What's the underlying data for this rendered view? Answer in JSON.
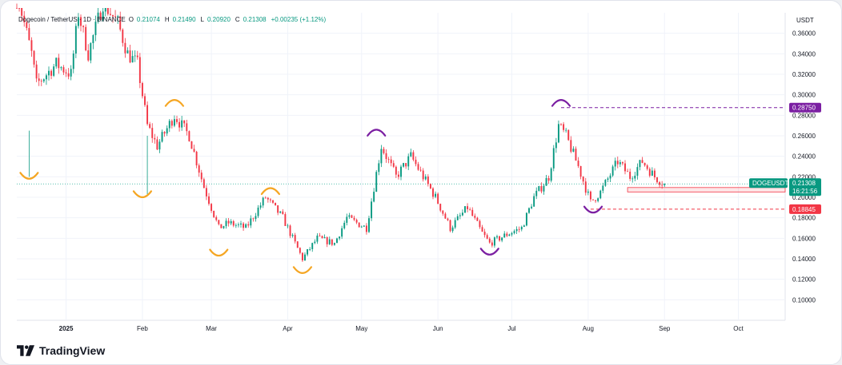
{
  "header": {
    "symbol": "Dogecoin / TetherUS · 1D · BINANCE",
    "open_label": "O",
    "open": "0.21074",
    "high_label": "H",
    "high": "0.21490",
    "low_label": "L",
    "low": "0.20920",
    "close_label": "C",
    "close": "0.21308",
    "change": "+0.00235 (+1.12%)",
    "currency": "USDT"
  },
  "brand": {
    "name": "TradingView"
  },
  "colors": {
    "up": "#089981",
    "down": "#f23645",
    "orange": "#f5a623",
    "purple": "#7b1fa2",
    "grid": "#f0f3fa",
    "price_line": "#22ab94"
  },
  "chart_data": {
    "type": "candlestick",
    "symbol": "DOGEUSDT",
    "ylim": [
      0.08,
      0.38
    ],
    "y_ticks": [
      "0.36000",
      "0.34000",
      "0.32000",
      "0.30000",
      "0.28000",
      "0.26000",
      "0.24000",
      "0.22000",
      "0.20000",
      "0.18000",
      "0.16000",
      "0.14000",
      "0.12000",
      "0.10000"
    ],
    "x_ticks": [
      {
        "label": "2025",
        "bold": true
      },
      {
        "label": "Feb",
        "bold": false
      },
      {
        "label": "Mar",
        "bold": false
      },
      {
        "label": "Apr",
        "bold": false
      },
      {
        "label": "May",
        "bold": false
      },
      {
        "label": "Jun",
        "bold": false
      },
      {
        "label": "Jul",
        "bold": false
      },
      {
        "label": "Aug",
        "bold": false
      },
      {
        "label": "Sep",
        "bold": false
      },
      {
        "label": "Oct",
        "bold": false
      }
    ],
    "x_range": [
      "2024-12-12",
      "2025-10-20"
    ],
    "anchors": [
      [
        "2024-12-12",
        0.4
      ],
      [
        "2024-12-18",
        0.34
      ],
      [
        "2024-12-20",
        0.31
      ],
      [
        "2024-12-28",
        0.33
      ],
      [
        "2025-01-03",
        0.32
      ],
      [
        "2025-01-06",
        0.38
      ],
      [
        "2025-01-10",
        0.34
      ],
      [
        "2025-01-16",
        0.39
      ],
      [
        "2025-01-19",
        0.38
      ],
      [
        "2025-01-22",
        0.37
      ],
      [
        "2025-01-26",
        0.34
      ],
      [
        "2025-01-30",
        0.33
      ],
      [
        "2025-02-03",
        0.27
      ],
      [
        "2025-02-07",
        0.25
      ],
      [
        "2025-02-14",
        0.28
      ],
      [
        "2025-02-20",
        0.26
      ],
      [
        "2025-02-26",
        0.21
      ],
      [
        "2025-03-01",
        0.19
      ],
      [
        "2025-03-04",
        0.17
      ],
      [
        "2025-03-08",
        0.175
      ],
      [
        "2025-03-15",
        0.17
      ],
      [
        "2025-03-23",
        0.2
      ],
      [
        "2025-03-30",
        0.18
      ],
      [
        "2025-04-07",
        0.14
      ],
      [
        "2025-04-13",
        0.16
      ],
      [
        "2025-04-20",
        0.155
      ],
      [
        "2025-04-25",
        0.18
      ],
      [
        "2025-05-03",
        0.17
      ],
      [
        "2025-05-09",
        0.25
      ],
      [
        "2025-05-15",
        0.22
      ],
      [
        "2025-05-21",
        0.24
      ],
      [
        "2025-05-31",
        0.2
      ],
      [
        "2025-06-06",
        0.17
      ],
      [
        "2025-06-13",
        0.19
      ],
      [
        "2025-06-19",
        0.165
      ],
      [
        "2025-06-22",
        0.155
      ],
      [
        "2025-06-30",
        0.165
      ],
      [
        "2025-07-05",
        0.17
      ],
      [
        "2025-07-10",
        0.2
      ],
      [
        "2025-07-16",
        0.22
      ],
      [
        "2025-07-20",
        0.27
      ],
      [
        "2025-07-23",
        0.26
      ],
      [
        "2025-07-28",
        0.23
      ],
      [
        "2025-08-02",
        0.195
      ],
      [
        "2025-08-06",
        0.205
      ],
      [
        "2025-08-13",
        0.235
      ],
      [
        "2025-08-18",
        0.22
      ],
      [
        "2025-08-23",
        0.235
      ],
      [
        "2025-08-28",
        0.22
      ],
      [
        "2025-09-01",
        0.21308
      ]
    ],
    "levels": [
      {
        "price": 0.2875,
        "label": "0.28750",
        "color": "#7b1fa2",
        "from": "2025-07-21"
      },
      {
        "price": 0.18845,
        "label": "0.18845",
        "color": "#f23645",
        "from": "2025-08-02"
      }
    ],
    "last_price": {
      "symbol_label": "DOGEUSDT",
      "price": 0.21308,
      "label": "0.21308",
      "countdown": "16:21:56",
      "color": "#089981"
    },
    "support_zone": {
      "low": 0.2052,
      "high": 0.2095,
      "from": "2025-08-17"
    },
    "swing_marks": [
      {
        "date": "2024-12-17",
        "price": 0.22,
        "color": "#f5a623",
        "shape": "cup"
      },
      {
        "date": "2025-02-01",
        "price": 0.202,
        "color": "#f5a623",
        "shape": "cup"
      },
      {
        "date": "2025-02-14",
        "price": 0.293,
        "color": "#f5a623",
        "shape": "cap"
      },
      {
        "date": "2025-03-04",
        "price": 0.145,
        "color": "#f5a623",
        "shape": "cup"
      },
      {
        "date": "2025-03-25",
        "price": 0.207,
        "color": "#f5a623",
        "shape": "cap"
      },
      {
        "date": "2025-04-07",
        "price": 0.128,
        "color": "#f5a623",
        "shape": "cup"
      },
      {
        "date": "2025-05-07",
        "price": 0.264,
        "color": "#7b1fa2",
        "shape": "cap"
      },
      {
        "date": "2025-06-22",
        "price": 0.146,
        "color": "#7b1fa2",
        "shape": "cup"
      },
      {
        "date": "2025-07-21",
        "price": 0.293,
        "color": "#7b1fa2",
        "shape": "cap"
      },
      {
        "date": "2025-08-03",
        "price": 0.187,
        "color": "#7b1fa2",
        "shape": "cup"
      }
    ]
  }
}
